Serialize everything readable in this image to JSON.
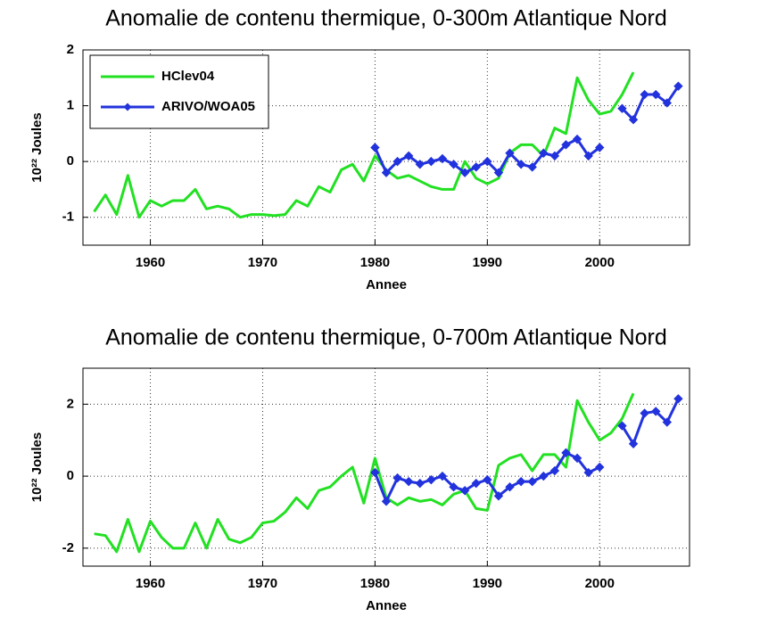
{
  "chart_data": [
    {
      "type": "line",
      "title": "Anomalie de contenu thermique, 0-300m Atlantique Nord",
      "xlabel": "Annee",
      "ylabel": "10²² Joules",
      "xlim": [
        1954,
        2008
      ],
      "xticks": [
        1960,
        1970,
        1980,
        1990,
        2000
      ],
      "ylim": [
        -1.5,
        2
      ],
      "yticks": [
        -1,
        0,
        1,
        2
      ],
      "grid": true,
      "legend": "upper left",
      "series": [
        {
          "name": "HClev04",
          "color": "#22e022",
          "marker": false,
          "x": [
            1955,
            1956,
            1957,
            1958,
            1959,
            1960,
            1961,
            1962,
            1963,
            1964,
            1965,
            1966,
            1967,
            1968,
            1969,
            1970,
            1971,
            1972,
            1973,
            1974,
            1975,
            1976,
            1977,
            1978,
            1979,
            1980,
            1981,
            1982,
            1983,
            1984,
            1985,
            1986,
            1987,
            1988,
            1989,
            1990,
            1991,
            1992,
            1993,
            1994,
            1995,
            1996,
            1997,
            1998,
            1999,
            2000,
            2001,
            2002,
            2003
          ],
          "values": [
            -0.9,
            -0.6,
            -0.95,
            -0.25,
            -1.0,
            -0.7,
            -0.8,
            -0.7,
            -0.7,
            -0.5,
            -0.85,
            -0.8,
            -0.85,
            -1.0,
            -0.95,
            -0.95,
            -0.97,
            -0.95,
            -0.7,
            -0.8,
            -0.45,
            -0.55,
            -0.15,
            -0.05,
            -0.35,
            0.1,
            -0.15,
            -0.3,
            -0.25,
            -0.35,
            -0.45,
            -0.5,
            -0.5,
            0.0,
            -0.3,
            -0.4,
            -0.3,
            0.15,
            0.3,
            0.3,
            0.1,
            0.6,
            0.5,
            1.5,
            1.1,
            0.85,
            0.9,
            1.2,
            1.6
          ]
        },
        {
          "name": "ARIVO/WOA05",
          "color": "#2233dd",
          "marker": true,
          "x": [
            1980,
            1981,
            1982,
            1983,
            1984,
            1985,
            1986,
            1987,
            1988,
            1989,
            1990,
            1991,
            1992,
            1993,
            1994,
            1995,
            1996,
            1997,
            1998,
            1999,
            2000,
            2001,
            2002,
            2003,
            2004,
            2005,
            2006,
            2007
          ],
          "values": [
            0.25,
            -0.2,
            0.0,
            0.1,
            -0.05,
            0.0,
            0.05,
            -0.05,
            -0.2,
            -0.1,
            0.0,
            -0.2,
            0.15,
            -0.05,
            -0.1,
            0.15,
            0.1,
            0.3,
            0.4,
            0.1,
            0.25,
            null,
            0.95,
            0.75,
            1.2,
            1.2,
            1.05,
            1.35
          ]
        }
      ]
    },
    {
      "type": "line",
      "title": "Anomalie de contenu thermique, 0-700m Atlantique Nord",
      "xlabel": "Annee",
      "ylabel": "10²² Joules",
      "xlim": [
        1954,
        2008
      ],
      "xticks": [
        1960,
        1970,
        1980,
        1990,
        2000
      ],
      "ylim": [
        -2.5,
        3
      ],
      "yticks": [
        -2,
        0,
        2
      ],
      "grid": true,
      "series": [
        {
          "color": "#22e022",
          "marker": false,
          "x": [
            1955,
            1956,
            1957,
            1958,
            1959,
            1960,
            1961,
            1962,
            1963,
            1964,
            1965,
            1966,
            1967,
            1968,
            1969,
            1970,
            1971,
            1972,
            1973,
            1974,
            1975,
            1976,
            1977,
            1978,
            1979,
            1980,
            1981,
            1982,
            1983,
            1984,
            1985,
            1986,
            1987,
            1988,
            1989,
            1990,
            1991,
            1992,
            1993,
            1994,
            1995,
            1996,
            1997,
            1998,
            1999,
            2000,
            2001,
            2002,
            2003
          ],
          "values": [
            -1.6,
            -1.65,
            -2.1,
            -1.2,
            -2.1,
            -1.25,
            -1.7,
            -2.0,
            -2.0,
            -1.3,
            -2.0,
            -1.2,
            -1.75,
            -1.85,
            -1.7,
            -1.3,
            -1.25,
            -1.0,
            -0.6,
            -0.9,
            -0.4,
            -0.3,
            0.0,
            0.25,
            -0.75,
            0.5,
            -0.6,
            -0.8,
            -0.6,
            -0.7,
            -0.65,
            -0.8,
            -0.5,
            -0.4,
            -0.9,
            -0.95,
            0.3,
            0.5,
            0.6,
            0.15,
            0.6,
            0.6,
            0.25,
            2.1,
            1.5,
            1.0,
            1.2,
            1.6,
            2.3
          ]
        },
        {
          "color": "#2233dd",
          "marker": true,
          "x": [
            1980,
            1981,
            1982,
            1983,
            1984,
            1985,
            1986,
            1987,
            1988,
            1989,
            1990,
            1991,
            1992,
            1993,
            1994,
            1995,
            1996,
            1997,
            1998,
            1999,
            2000,
            2001,
            2002,
            2003,
            2004,
            2005,
            2006,
            2007
          ],
          "values": [
            0.1,
            -0.7,
            -0.05,
            -0.15,
            -0.2,
            -0.1,
            0.0,
            -0.3,
            -0.4,
            -0.2,
            -0.1,
            -0.55,
            -0.3,
            -0.15,
            -0.15,
            0.0,
            0.15,
            0.65,
            0.5,
            0.1,
            0.25,
            null,
            1.4,
            0.9,
            1.75,
            1.8,
            1.5,
            2.15
          ]
        }
      ]
    }
  ]
}
